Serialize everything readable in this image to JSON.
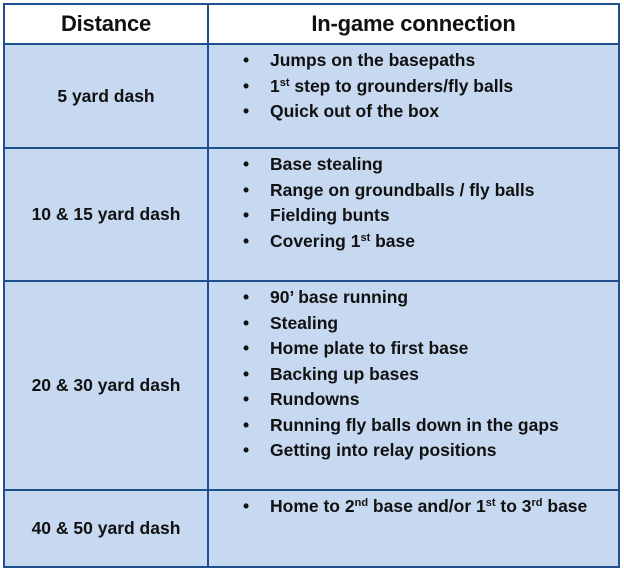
{
  "header": {
    "distance": "Distance",
    "connection": "In-game connection"
  },
  "bullet_glyph": "•",
  "rows": [
    {
      "distance": "5 yard dash",
      "items": [
        {
          "pre": "Jumps on the basepaths"
        },
        {
          "pre": "1",
          "sup": "st",
          "post": " step to grounders/fly balls"
        },
        {
          "pre": "Quick out of the box"
        }
      ]
    },
    {
      "distance": "10 & 15 yard dash",
      "items": [
        {
          "pre": "Base stealing"
        },
        {
          "pre": "Range on groundballs / fly balls"
        },
        {
          "pre": "Fielding bunts"
        },
        {
          "pre": "Covering 1",
          "sup": "st",
          "post": " base"
        }
      ]
    },
    {
      "distance": "20 & 30 yard dash",
      "items": [
        {
          "pre": "90’ base running"
        },
        {
          "pre": "Stealing"
        },
        {
          "pre": "Home plate to first base"
        },
        {
          "pre": "Backing up bases"
        },
        {
          "pre": "Rundowns"
        },
        {
          "pre": "Running fly balls down in the gaps"
        },
        {
          "pre": "Getting into relay positions"
        }
      ]
    },
    {
      "distance": "40 & 50 yard dash",
      "items": [
        {
          "pre": "Home to 2",
          "sup": "nd",
          "post": " base and/or 1",
          "sup2": "st",
          "post2": " to 3",
          "sup3": "rd",
          "post3": " base"
        }
      ]
    }
  ],
  "colors": {
    "cell_fill": "#c6d9f1",
    "border": "#1f4f8c",
    "header_fill": "#ffffff"
  }
}
